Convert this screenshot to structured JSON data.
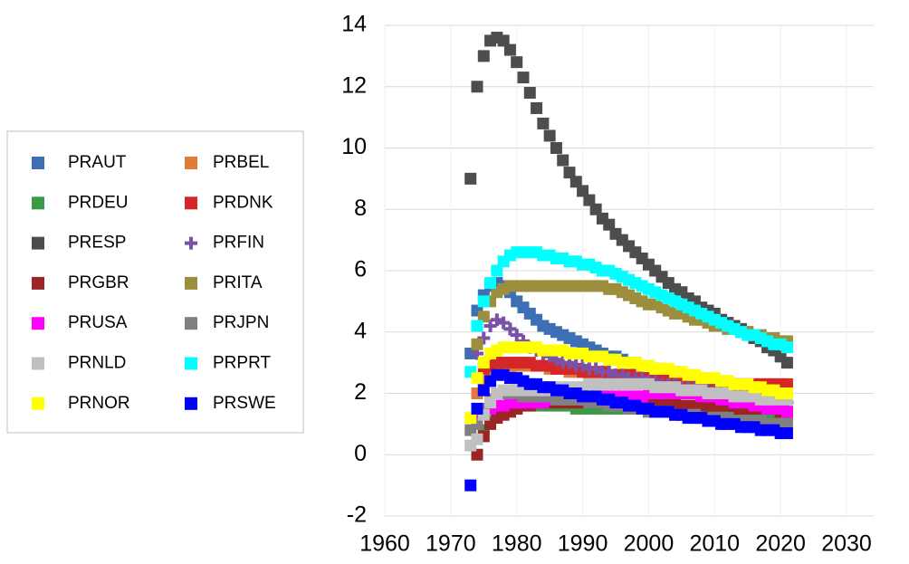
{
  "chart_data": {
    "type": "scatter",
    "x": [
      1973,
      1974,
      1975,
      1976,
      1977,
      1978,
      1979,
      1980,
      1981,
      1982,
      1983,
      1984,
      1985,
      1986,
      1987,
      1988,
      1989,
      1990,
      1991,
      1992,
      1993,
      1994,
      1995,
      1996,
      1997,
      1998,
      1999,
      2000,
      2001,
      2002,
      2003,
      2004,
      2005,
      2006,
      2007,
      2008,
      2009,
      2010,
      2011,
      2012,
      2013,
      2014,
      2015,
      2016,
      2017,
      2018,
      2019,
      2020,
      2021
    ],
    "xlim": [
      1960,
      2030
    ],
    "xticks": [
      1960,
      1970,
      1980,
      1990,
      2000,
      2010,
      2020,
      2030
    ],
    "ylim": [
      -2,
      14
    ],
    "yticks": [
      -2,
      0,
      2,
      4,
      6,
      8,
      10,
      12,
      14
    ],
    "grid": true,
    "legend": "left",
    "series": [
      {
        "name": "PRAUT",
        "color": "#3e6fb5",
        "marker": "square",
        "values": [
          3.3,
          4.7,
          5.2,
          5.5,
          5.6,
          5.5,
          5.3,
          5.0,
          4.8,
          4.6,
          4.4,
          4.2,
          4.1,
          4.0,
          3.9,
          3.8,
          3.7,
          3.6,
          3.5,
          3.4,
          3.3,
          3.2,
          3.2,
          3.1,
          3.0,
          3.0,
          2.9,
          2.9,
          2.8,
          2.8,
          2.7,
          2.7,
          2.6,
          2.6,
          2.5,
          2.5,
          2.4,
          2.4,
          2.3,
          2.3,
          2.3,
          2.2,
          2.2,
          2.2,
          2.1,
          2.1,
          2.1,
          2.0,
          2.0
        ]
      },
      {
        "name": "PRBEL",
        "color": "#e07b39",
        "marker": "square",
        "values": [
          null,
          2.0,
          2.4,
          2.6,
          2.7,
          2.8,
          2.8,
          2.9,
          2.9,
          2.9,
          2.9,
          2.9,
          2.8,
          2.8,
          2.8,
          2.7,
          2.7,
          2.7,
          2.6,
          2.6,
          2.6,
          2.5,
          2.5,
          2.5,
          2.4,
          2.4,
          2.4,
          2.4,
          2.3,
          2.3,
          2.3,
          2.3,
          2.3,
          2.2,
          2.2,
          2.2,
          2.2,
          2.2,
          2.2,
          2.1,
          2.1,
          2.1,
          2.1,
          2.1,
          2.1,
          2.0,
          2.0,
          2.0,
          2.0
        ]
      },
      {
        "name": "PRDEU",
        "color": "#3c9a47",
        "marker": "square",
        "values": [
          null,
          null,
          0.8,
          1.1,
          1.3,
          1.4,
          1.5,
          1.5,
          1.6,
          1.6,
          1.6,
          1.6,
          1.6,
          1.6,
          1.6,
          1.6,
          1.5,
          1.5,
          1.5,
          1.5,
          1.5,
          1.5,
          1.5,
          1.5,
          1.5,
          1.5,
          1.5,
          1.5,
          1.5,
          1.4,
          1.4,
          1.4,
          1.4,
          1.4,
          1.4,
          1.4,
          1.4,
          1.4,
          1.3,
          1.3,
          1.3,
          1.3,
          1.3,
          1.3,
          1.3,
          1.3,
          1.2,
          1.2,
          1.2
        ]
      },
      {
        "name": "PRDNK",
        "color": "#d62728",
        "marker": "square",
        "values": [
          null,
          2.5,
          2.8,
          2.9,
          3.0,
          3.0,
          3.0,
          3.0,
          3.0,
          3.0,
          2.9,
          2.9,
          2.9,
          2.8,
          2.8,
          2.8,
          2.8,
          2.7,
          2.7,
          2.7,
          2.7,
          2.6,
          2.6,
          2.6,
          2.6,
          2.6,
          2.5,
          2.5,
          2.5,
          2.5,
          2.5,
          2.5,
          2.4,
          2.4,
          2.4,
          2.4,
          2.4,
          2.4,
          2.4,
          2.4,
          2.3,
          2.3,
          2.3,
          2.3,
          2.3,
          2.3,
          2.3,
          2.3,
          2.3
        ]
      },
      {
        "name": "PRESP",
        "color": "#4d4d4d",
        "marker": "square",
        "values": [
          9,
          12,
          13,
          13.5,
          13.6,
          13.5,
          13.2,
          12.8,
          12.3,
          11.8,
          11.3,
          10.8,
          10.4,
          10.0,
          9.6,
          9.2,
          8.9,
          8.6,
          8.3,
          8.0,
          7.7,
          7.5,
          7.2,
          7.0,
          6.8,
          6.6,
          6.4,
          6.2,
          6.0,
          5.8,
          5.6,
          5.4,
          5.3,
          5.1,
          5.0,
          4.8,
          4.7,
          4.6,
          4.4,
          4.3,
          4.2,
          4.1,
          4.0,
          3.8,
          3.7,
          3.5,
          3.4,
          3.2,
          3.0
        ]
      },
      {
        "name": "PRFIN",
        "color": "#7b52a8",
        "marker": "plus",
        "values": [
          null,
          3.3,
          3.8,
          4.2,
          4.4,
          4.3,
          4.1,
          3.9,
          3.7,
          3.5,
          3.4,
          3.3,
          3.2,
          3.1,
          3.0,
          3.0,
          2.9,
          2.9,
          2.8,
          2.8,
          2.7,
          2.7,
          2.6,
          2.6,
          2.5,
          2.5,
          2.5,
          2.4,
          2.4,
          2.3,
          2.3,
          2.3,
          2.2,
          2.2,
          2.2,
          2.1,
          2.1,
          2.1,
          2.0,
          2.0,
          2.0,
          1.9,
          1.9,
          1.9,
          1.8,
          1.8,
          1.8,
          1.7,
          1.7
        ]
      },
      {
        "name": "PRGBR",
        "color": "#9b2424",
        "marker": "square",
        "values": [
          null,
          0.0,
          0.6,
          1.0,
          1.2,
          1.3,
          1.4,
          1.5,
          1.6,
          1.6,
          1.7,
          1.7,
          1.7,
          1.7,
          1.7,
          1.7,
          1.7,
          1.7,
          1.7,
          1.7,
          1.7,
          1.7,
          1.7,
          1.7,
          1.7,
          1.7,
          1.7,
          1.7,
          1.7,
          1.7,
          1.7,
          1.7,
          1.6,
          1.6,
          1.6,
          1.6,
          1.6,
          1.6,
          1.6,
          1.6,
          1.5,
          1.5,
          1.5,
          1.5,
          1.5,
          1.5,
          1.5,
          1.4,
          1.4
        ]
      },
      {
        "name": "PRITA",
        "color": "#9c8e3c",
        "marker": "square",
        "values": [
          null,
          3.6,
          4.5,
          5.0,
          5.3,
          5.4,
          5.5,
          5.5,
          5.5,
          5.5,
          5.5,
          5.5,
          5.5,
          5.5,
          5.5,
          5.5,
          5.5,
          5.5,
          5.5,
          5.5,
          5.5,
          5.4,
          5.4,
          5.3,
          5.2,
          5.1,
          5.0,
          4.9,
          4.9,
          4.8,
          4.7,
          4.6,
          4.6,
          4.5,
          4.4,
          4.4,
          4.3,
          4.2,
          4.2,
          4.1,
          4.1,
          4.0,
          4.0,
          3.9,
          3.9,
          3.8,
          3.8,
          3.7,
          3.7
        ]
      },
      {
        "name": "PRUSA",
        "color": "#ff00ff",
        "marker": "square",
        "values": [
          null,
          1.2,
          1.4,
          1.5,
          1.6,
          1.6,
          1.7,
          1.7,
          1.7,
          1.7,
          1.7,
          1.7,
          1.8,
          1.8,
          1.8,
          1.8,
          1.8,
          1.8,
          1.8,
          1.8,
          1.9,
          1.9,
          1.9,
          1.9,
          1.9,
          1.9,
          1.9,
          2.0,
          2.0,
          2.0,
          2.0,
          2.0,
          2.0,
          2.0,
          2.0,
          1.9,
          1.9,
          1.9,
          1.8,
          1.8,
          1.7,
          1.7,
          1.7,
          1.6,
          1.6,
          1.5,
          1.5,
          1.5,
          1.4
        ]
      },
      {
        "name": "PRJPN",
        "color": "#808080",
        "marker": "square",
        "values": [
          0.8,
          1.0,
          1.5,
          1.8,
          2.0,
          2.0,
          2.0,
          2.0,
          1.9,
          1.9,
          1.9,
          1.9,
          1.9,
          1.8,
          1.8,
          1.8,
          1.8,
          1.8,
          1.7,
          1.7,
          1.7,
          1.6,
          1.6,
          1.6,
          1.5,
          1.5,
          1.5,
          1.4,
          1.4,
          1.4,
          1.4,
          1.3,
          1.3,
          1.3,
          1.3,
          1.2,
          1.2,
          1.2,
          1.2,
          1.2,
          1.1,
          1.1,
          1.1,
          1.1,
          1.1,
          1.0,
          1.0,
          1.0,
          1.0
        ]
      },
      {
        "name": "PRNLD",
        "color": "#c0c0c0",
        "marker": "square",
        "values": [
          0.3,
          0.5,
          1.3,
          1.7,
          2.0,
          2.1,
          2.1,
          2.1,
          2.1,
          2.1,
          2.1,
          2.1,
          2.1,
          2.2,
          2.2,
          2.2,
          2.2,
          2.2,
          2.3,
          2.3,
          2.3,
          2.3,
          2.3,
          2.3,
          2.3,
          2.3,
          2.3,
          2.3,
          2.2,
          2.2,
          2.2,
          2.2,
          2.1,
          2.1,
          2.1,
          2.1,
          2.0,
          2.0,
          2.0,
          2.0,
          1.9,
          1.9,
          1.9,
          1.9,
          1.8,
          1.8,
          1.8,
          1.8,
          1.8
        ]
      },
      {
        "name": "PRPRT",
        "color": "#00ffff",
        "marker": "square",
        "values": [
          2.7,
          4.2,
          5.0,
          5.6,
          6.0,
          6.3,
          6.5,
          6.6,
          6.6,
          6.6,
          6.6,
          6.5,
          6.5,
          6.4,
          6.4,
          6.3,
          6.3,
          6.2,
          6.2,
          6.1,
          6.0,
          6.0,
          5.9,
          5.8,
          5.7,
          5.6,
          5.5,
          5.4,
          5.3,
          5.2,
          5.1,
          5.0,
          4.9,
          4.8,
          4.7,
          4.6,
          4.5,
          4.4,
          4.3,
          4.2,
          4.1,
          4.0,
          3.9,
          3.9,
          3.8,
          3.7,
          3.6,
          3.6,
          3.5
        ]
      },
      {
        "name": "PRNOR",
        "color": "#ffff00",
        "marker": "square",
        "values": [
          1.2,
          2.5,
          3.0,
          3.3,
          3.4,
          3.5,
          3.5,
          3.5,
          3.5,
          3.5,
          3.5,
          3.4,
          3.4,
          3.4,
          3.4,
          3.3,
          3.3,
          3.3,
          3.2,
          3.2,
          3.2,
          3.1,
          3.1,
          3.0,
          3.0,
          3.0,
          2.9,
          2.9,
          2.8,
          2.8,
          2.8,
          2.7,
          2.7,
          2.6,
          2.6,
          2.5,
          2.5,
          2.5,
          2.4,
          2.4,
          2.3,
          2.3,
          2.3,
          2.2,
          2.2,
          2.1,
          2.1,
          2.0,
          2.0
        ]
      },
      {
        "name": "PRSWE",
        "color": "#0000ff",
        "marker": "square",
        "values": [
          -1.0,
          1.5,
          2.1,
          2.4,
          2.6,
          2.6,
          2.5,
          2.5,
          2.4,
          2.3,
          2.3,
          2.2,
          2.2,
          2.1,
          2.1,
          2.0,
          2.0,
          1.9,
          1.9,
          1.9,
          1.8,
          1.8,
          1.7,
          1.7,
          1.6,
          1.6,
          1.5,
          1.5,
          1.4,
          1.4,
          1.4,
          1.3,
          1.3,
          1.2,
          1.2,
          1.2,
          1.1,
          1.1,
          1.0,
          1.0,
          1.0,
          0.9,
          0.9,
          0.9,
          0.8,
          0.8,
          0.8,
          0.7,
          0.7
        ]
      }
    ]
  }
}
